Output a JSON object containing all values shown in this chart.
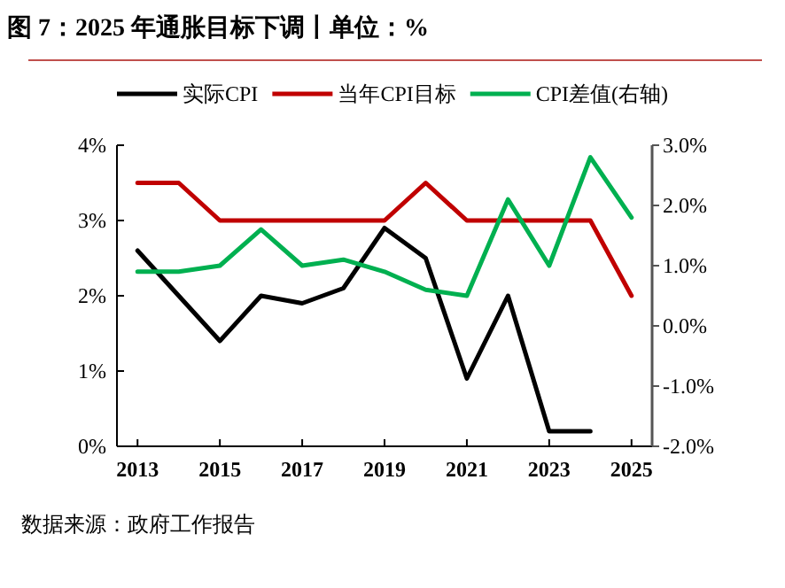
{
  "chart_data": {
    "type": "line",
    "title": "图 7：2025 年通胀目标下调丨单位：%",
    "annotations": [
      "数据来源：政府工作报告"
    ],
    "x": [
      2013,
      2014,
      2015,
      2016,
      2017,
      2018,
      2019,
      2020,
      2021,
      2022,
      2023,
      2024,
      2025
    ],
    "xlim": [
      2012.5,
      2025.5
    ],
    "xticks": [
      2013,
      2015,
      2017,
      2019,
      2021,
      2023,
      2025
    ],
    "ylim": [
      0,
      4
    ],
    "yticks": [
      {
        "value": 0,
        "label": "0%"
      },
      {
        "value": 1,
        "label": "1%"
      },
      {
        "value": 2,
        "label": "2%"
      },
      {
        "value": 3,
        "label": "3%"
      },
      {
        "value": 4,
        "label": "4%"
      }
    ],
    "y2lim": [
      -2,
      3
    ],
    "y2ticks": [
      {
        "value": -2,
        "label": "-2.0%"
      },
      {
        "value": -1,
        "label": "-1.0%"
      },
      {
        "value": 0,
        "label": "0.0%"
      },
      {
        "value": 1,
        "label": "1.0%"
      },
      {
        "value": 2,
        "label": "2.0%"
      },
      {
        "value": 3,
        "label": "3.0%"
      }
    ],
    "legend": "top",
    "grid": false,
    "marker": "none",
    "line_style": "solid",
    "series": [
      {
        "name": "实际CPI",
        "color": "#000000",
        "values": [
          2.6,
          2.0,
          1.4,
          2.0,
          1.9,
          2.1,
          2.9,
          2.5,
          0.9,
          2.0,
          0.2,
          0.2,
          null
        ]
      },
      {
        "name": "当年CPI目标",
        "color": "#c00000",
        "values": [
          3.5,
          3.5,
          3.0,
          3.0,
          3.0,
          3.0,
          3.0,
          3.5,
          3.0,
          3.0,
          3.0,
          3.0,
          2.0
        ]
      },
      {
        "name": "CPI差值(右轴)",
        "color": "#00b050",
        "axis": "y2",
        "values": [
          0.9,
          0.9,
          1.0,
          1.6,
          1.0,
          1.1,
          0.9,
          0.6,
          0.5,
          2.1,
          1.0,
          2.8,
          1.8
        ]
      }
    ]
  }
}
